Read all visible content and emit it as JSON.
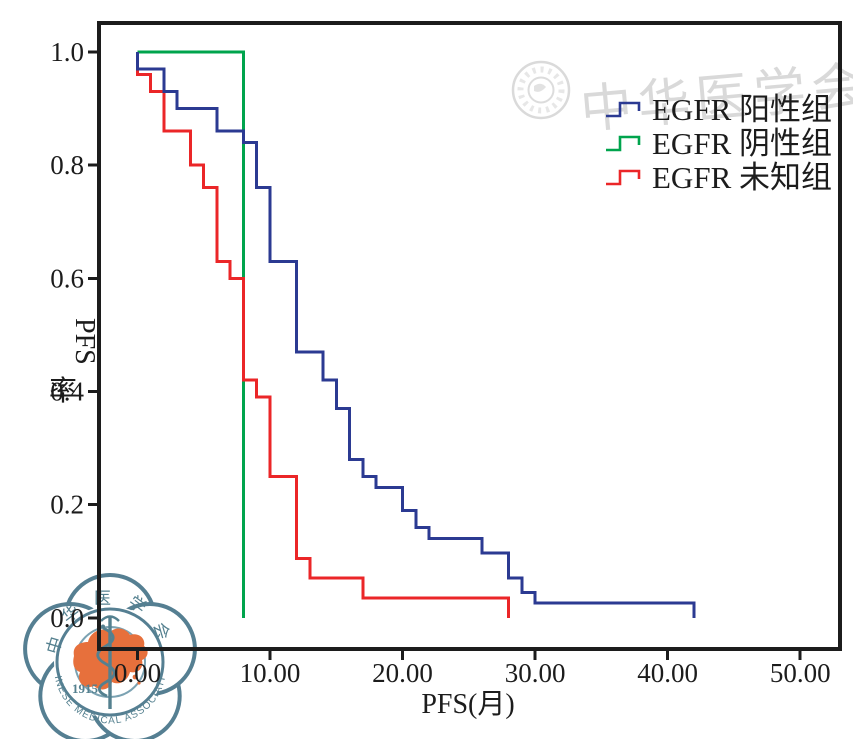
{
  "watermark": {
    "calligraphy": "中华医学会",
    "logo": {
      "top_text": "中华医学会",
      "bottom_text": "CHINESE MEDICAL ASSOCIATION",
      "year": "1915"
    }
  },
  "chart_data": {
    "type": "line",
    "subtype": "kaplan-meier-step-survival",
    "title": "",
    "xlabel": "PFS(月)",
    "ylabel": "PFS率",
    "ylabel_rotated": "PFS",
    "ylabel_upright": "率",
    "grid": false,
    "legend_position": "top-right",
    "xlim": [
      -2.9,
      53
    ],
    "ylim": [
      -0.055,
      1.051
    ],
    "x_ticks": {
      "values": [
        0,
        10,
        20,
        30,
        40,
        50
      ],
      "labels": [
        "0.00",
        "10.00",
        "20.00",
        "30.00",
        "40.00",
        "50.00"
      ]
    },
    "y_ticks": {
      "values": [
        1.0,
        0.8,
        0.6,
        0.4,
        0.2,
        0.0
      ],
      "labels": [
        "1.0",
        "0.8",
        "0.6",
        "0.4",
        "0.2",
        "0.0"
      ]
    },
    "axis_color": "#1c1c1c",
    "series": [
      {
        "name": "EGFR 阳性组",
        "color": "#2b3a92",
        "steps": [
          [
            0,
            1.0
          ],
          [
            0,
            0.97
          ],
          [
            2,
            0.93
          ],
          [
            3,
            0.9
          ],
          [
            6,
            0.86
          ],
          [
            8,
            0.84
          ],
          [
            9,
            0.76
          ],
          [
            10,
            0.63
          ],
          [
            12,
            0.47
          ],
          [
            14,
            0.42
          ],
          [
            15,
            0.37
          ],
          [
            16,
            0.28
          ],
          [
            17,
            0.25
          ],
          [
            18,
            0.23
          ],
          [
            20,
            0.19
          ],
          [
            21,
            0.16
          ],
          [
            22,
            0.14
          ],
          [
            26,
            0.115
          ],
          [
            28,
            0.07
          ],
          [
            29,
            0.045
          ],
          [
            30,
            0.026
          ],
          [
            42,
            0.0
          ]
        ]
      },
      {
        "name": "EGFR 阴性组",
        "color": "#00a44d",
        "steps": [
          [
            0,
            1.0
          ],
          [
            8,
            0.0
          ]
        ]
      },
      {
        "name": "EGFR 未知组",
        "color": "#eb2628",
        "steps": [
          [
            0,
            1.0
          ],
          [
            0,
            0.96
          ],
          [
            1,
            0.93
          ],
          [
            2,
            0.86
          ],
          [
            4,
            0.8
          ],
          [
            5,
            0.76
          ],
          [
            6,
            0.63
          ],
          [
            7,
            0.6
          ],
          [
            8,
            0.42
          ],
          [
            9,
            0.39
          ],
          [
            10,
            0.25
          ],
          [
            12,
            0.105
          ],
          [
            13,
            0.07
          ],
          [
            17,
            0.035
          ],
          [
            28,
            0.0
          ]
        ]
      }
    ]
  }
}
